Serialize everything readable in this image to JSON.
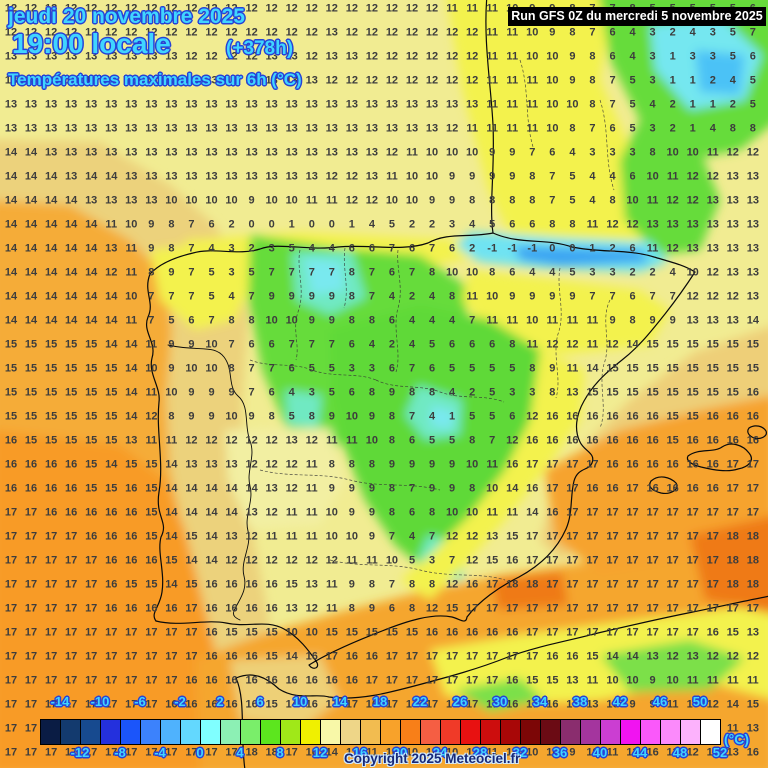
{
  "header": {
    "date_line": "jeudi 20 novembre 2025",
    "time_line": "19:00 locale",
    "forecast_offset": "(+378h)",
    "variable_line": "Températures maximales sur 6h (°C)"
  },
  "run_banner": {
    "text": "Run GFS 0Z du mercredi 5 novembre 2025"
  },
  "copyright": "Copyright 2025 Meteociel.fr",
  "colors": {
    "label_cyan": "#40d5ff",
    "label_outline_blue": "#2742d6",
    "banner_bg": "#000000",
    "banner_text": "#ffffff",
    "number_color": "#3d3d3d",
    "copyright_color": "#182878"
  },
  "scale": {
    "unit": "(°C)",
    "min": -16,
    "max": 52,
    "step": 2,
    "top_labels": [
      "-14",
      "-10",
      "-6",
      "-2",
      "2",
      "6",
      "10",
      "14",
      "18",
      "22",
      "26",
      "30",
      "34",
      "38",
      "42",
      "46",
      "50"
    ],
    "bottom_labels": [
      "-12",
      "-8",
      "-4",
      "0",
      "4",
      "8",
      "12",
      "16",
      "20",
      "24",
      "28",
      "32",
      "36",
      "40",
      "44",
      "48",
      "52"
    ],
    "swatches": [
      "#0a1c44",
      "#133a6e",
      "#174a8f",
      "#2430dd",
      "#1b55fa",
      "#3c82fc",
      "#4fb2fd",
      "#63d8fe",
      "#80ffff",
      "#8cf0b4",
      "#7aee6a",
      "#5ce61e",
      "#a0e818",
      "#f0f000",
      "#f8f8a8",
      "#eed688",
      "#f2bc50",
      "#f8a22a",
      "#f87f18",
      "#f55e43",
      "#f03a28",
      "#e81111",
      "#cd0d0d",
      "#a80707",
      "#7c0606",
      "#6b0b14",
      "#8a2d6e",
      "#a4359e",
      "#cb3ed2",
      "#f113f1",
      "#fa58fa",
      "#fb8afb",
      "#fcb2fc",
      "#ffffff"
    ]
  },
  "grid": {
    "cols": 38,
    "rows": [
      "12 12 12 12 12 12 12 12 12 12 12 12 12 12 12 12 12 12 12 12 12 12 11 11 11 10 9 9 8 7 7 8 5 5 5 5 5 6",
      "12 12 12 12 12 12 12 12 12 12 12 12 12 12 12 12 13 12 12 12 12 12 12 12 11 11 10 9 8 7 6 4 3 2 4 3 5 7",
      "13 13 13 13 13 13 13 13 13 12 12 12 12 13 13 12 13 13 12 12 12 12 12 12 11 11 10 10 9 8 6 4 3 1 3 3 5 6",
      "13 13 13 13 13 13 13 13 13 13 13 13 13 13 13 13 12 12 12 12 12 12 12 12 11 11 11 10 9 8 7 5 3 1 1 2 4 5",
      "13 13 13 13 13 13 13 13 13 13 13 13 13 13 13 13 13 13 13 13 13 13 13 13 11 11 11 10 10 8 7 5 4 2 1 1 2 5",
      "13 13 13 13 13 13 13 13 13 13 13 13 13 13 13 13 13 13 13 13 13 13 12 11 11 11 11 10 8 7 6 5 3 2 1 4 8 8",
      "14 14 13 13 13 13 13 13 13 13 13 13 13 13 13 13 13 13 13 12 11 10 10 10 9 9 7 6 4 3 3 3 8 10 10 11 12 12",
      "14 14 14 13 14 14 13 13 13 13 13 13 13 13 13 13 12 12 13 11 10 10 9 9 9 9 8 7 5 4 4 6 10 11 12 12 13 13",
      "14 14 14 14 13 13 13 13 10 10 10 10 9 10 10 11 11 12 12 10 10 9 9 8 8 8 8 7 5 4 8 10 11 12 12 13 13 13",
      "14 14 14 14 14 11 10 9 8 7 6 2 0 0 1 0 0 1 4 5 2 2 3 4 5 6 6 8 8 11 12 12 13 13 13 13 13 13",
      "14 14 14 14 14 13 11 9 8 7 4 3 2 3 5 4 4 6 6 7 6 7 6 2 -1 -1 -1 0 0 1 2 6 11 12 13 13 13 13",
      "14 14 14 14 14 12 11 8 9 7 5 3 5 7 7 7 7 8 7 6 7 8 10 10 8 6 4 4 5 3 3 2 2 4 10 12 13 13",
      "14 14 14 14 14 14 10 7 7 7 5 4 7 9 9 9 9 8 7 4 2 4 8 11 10 9 9 9 9 7 7 6 7 7 12 12 12 13",
      "14 14 14 14 14 14 11 7 5 6 7 8 8 10 10 9 9 8 8 6 4 4 4 7 11 11 10 11 11 11 9 8 9 9 13 13 13 14",
      "15 15 15 15 15 14 14 11 9 9 10 7 6 6 7 7 7 6 4 2 4 5 6 6 6 8 11 12 12 11 12 14 15 15 15 15 15 15",
      "15 15 15 15 15 15 14 10 9 10 10 8 7 7 6 5 5 3 3 6 7 6 5 5 5 5 8 9 11 14 15 15 15 15 15 15 15 15",
      "15 15 15 15 15 15 14 11 10 9 9 9 7 6 4 3 5 6 8 9 8 8 4 2 5 3 3 8 13 15 15 15 15 15 15 15 15 16",
      "15 15 15 15 15 15 14 12 8 9 9 10 9 8 5 8 9 10 9 8 7 4 1 5 5 6 12 16 16 16 16 16 16 15 15 16 16 16",
      "16 15 15 15 15 15 13 11 11 12 12 12 12 12 13 12 11 11 10 8 6 5 5 8 7 12 16 16 16 16 16 16 16 15 16 16 16 16",
      "16 16 16 16 15 14 15 15 14 13 13 13 12 12 12 11 8 8 8 9 9 9 9 10 11 16 17 17 17 17 16 16 16 16 16 16 17 17",
      "16 16 16 16 15 15 16 15 14 14 14 14 14 13 12 11 9 9 9 8 7 9 9 8 10 14 16 17 17 16 16 17 16 16 16 16 17 17",
      "17 17 16 16 16 16 16 15 14 14 14 14 13 12 11 11 10 9 9 8 6 8 10 10 11 11 14 16 17 17 17 17 17 17 17 17 17 17",
      "17 17 17 17 16 16 16 15 14 15 14 13 12 11 11 11 10 10 9 7 4 7 12 12 13 15 17 17 17 17 17 17 17 17 17 17 18 18",
      "17 17 17 17 17 16 16 16 15 14 14 12 12 12 12 12 12 11 11 10 5 3 7 12 15 16 17 17 17 17 17 17 17 17 17 17 18 18",
      "17 17 17 17 17 16 15 15 14 15 16 16 16 16 15 13 11 9 8 7 8 8 12 16 17 18 18 17 17 17 17 17 17 17 17 17 18 18",
      "17 17 17 17 17 16 16 16 16 17 16 16 16 16 13 12 11 8 9 6 8 12 15 17 17 17 17 17 17 17 17 17 17 17 17 17 17 17",
      "17 17 17 17 17 17 17 17 17 17 16 15 15 15 10 10 15 15 15 15 15 16 16 16 16 16 17 17 17 17 17 17 17 17 17 16 15 13",
      "17 17 17 17 17 17 17 17 17 17 16 16 16 15 14 16 17 16 16 17 17 17 17 17 17 17 17 16 16 15 14 14 13 12 13 12 12 12",
      "17 17 17 17 17 17 17 17 17 16 16 16 16 16 16 16 16 16 17 17 17 17 17 17 17 16 15 15 13 11 10 10 9 10 11 11 11 11",
      "17 17 17 17 17 17 17 17 16 16 16 16 16 15 14 16 17 17 16 17 17 17 17 17 17 16 17 16 16 13 10 9 9 11 10 12 14 15",
      "17 17 17 17 17 17 17 17 16 16 18 17 15 13 9 9 11 14 15 13 13 13 9 10 10 10 11 10 10 10 11 12 12 10 10 11 11 13",
      "17 17 17 17 17 17 17 17 17 17 17 17 18 18 17 16 14 11 11 10 10 10 10 11 11 10 10 10 9 10 11 12 16 13 12 13 13 16"
    ]
  }
}
